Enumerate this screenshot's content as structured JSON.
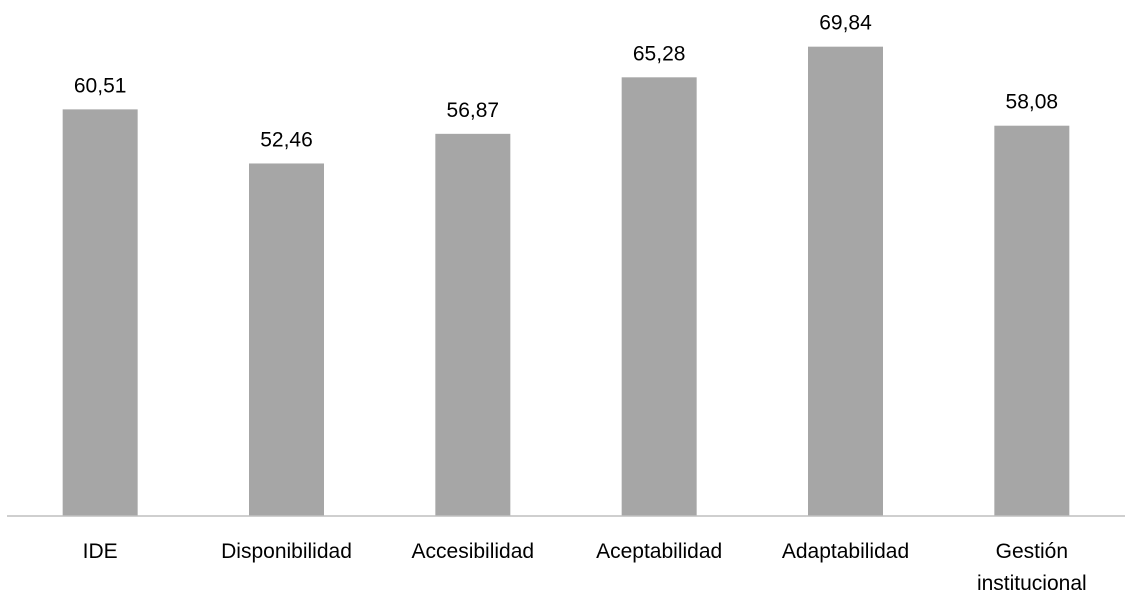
{
  "chart_data": {
    "type": "bar",
    "categories": [
      [
        "IDE"
      ],
      [
        "Disponibilidad"
      ],
      [
        "Accesibilidad"
      ],
      [
        "Aceptabilidad"
      ],
      [
        "Adaptabilidad"
      ],
      [
        "Gestión",
        "institucional"
      ]
    ],
    "values": [
      60.51,
      52.46,
      56.87,
      65.28,
      69.84,
      58.08
    ],
    "value_labels": [
      "60,51",
      "52,46",
      "56,87",
      "65,28",
      "69,84",
      "58,08"
    ],
    "title": "",
    "xlabel": "",
    "ylabel": "",
    "ylim": [
      0,
      75
    ],
    "grid": false,
    "legend": "none",
    "colors": {
      "bar": "#a6a6a6",
      "axis": "#bfbfbf",
      "text": "#000000"
    }
  }
}
